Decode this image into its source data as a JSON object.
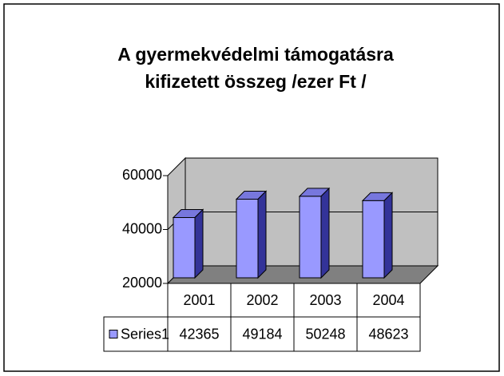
{
  "chart_data": {
    "type": "bar",
    "title": [
      "A gyermekvédelmi támogatásra",
      "kifizetett összeg  /ezer Ft /"
    ],
    "categories": [
      "2001",
      "2002",
      "2003",
      "2004"
    ],
    "series": [
      {
        "name": "Series1",
        "color": "#9999ff",
        "values": [
          42365,
          49184,
          50248,
          48623
        ]
      }
    ],
    "ylim": [
      20000,
      60000
    ],
    "yticks": [
      20000,
      40000,
      60000
    ],
    "grid": true
  }
}
